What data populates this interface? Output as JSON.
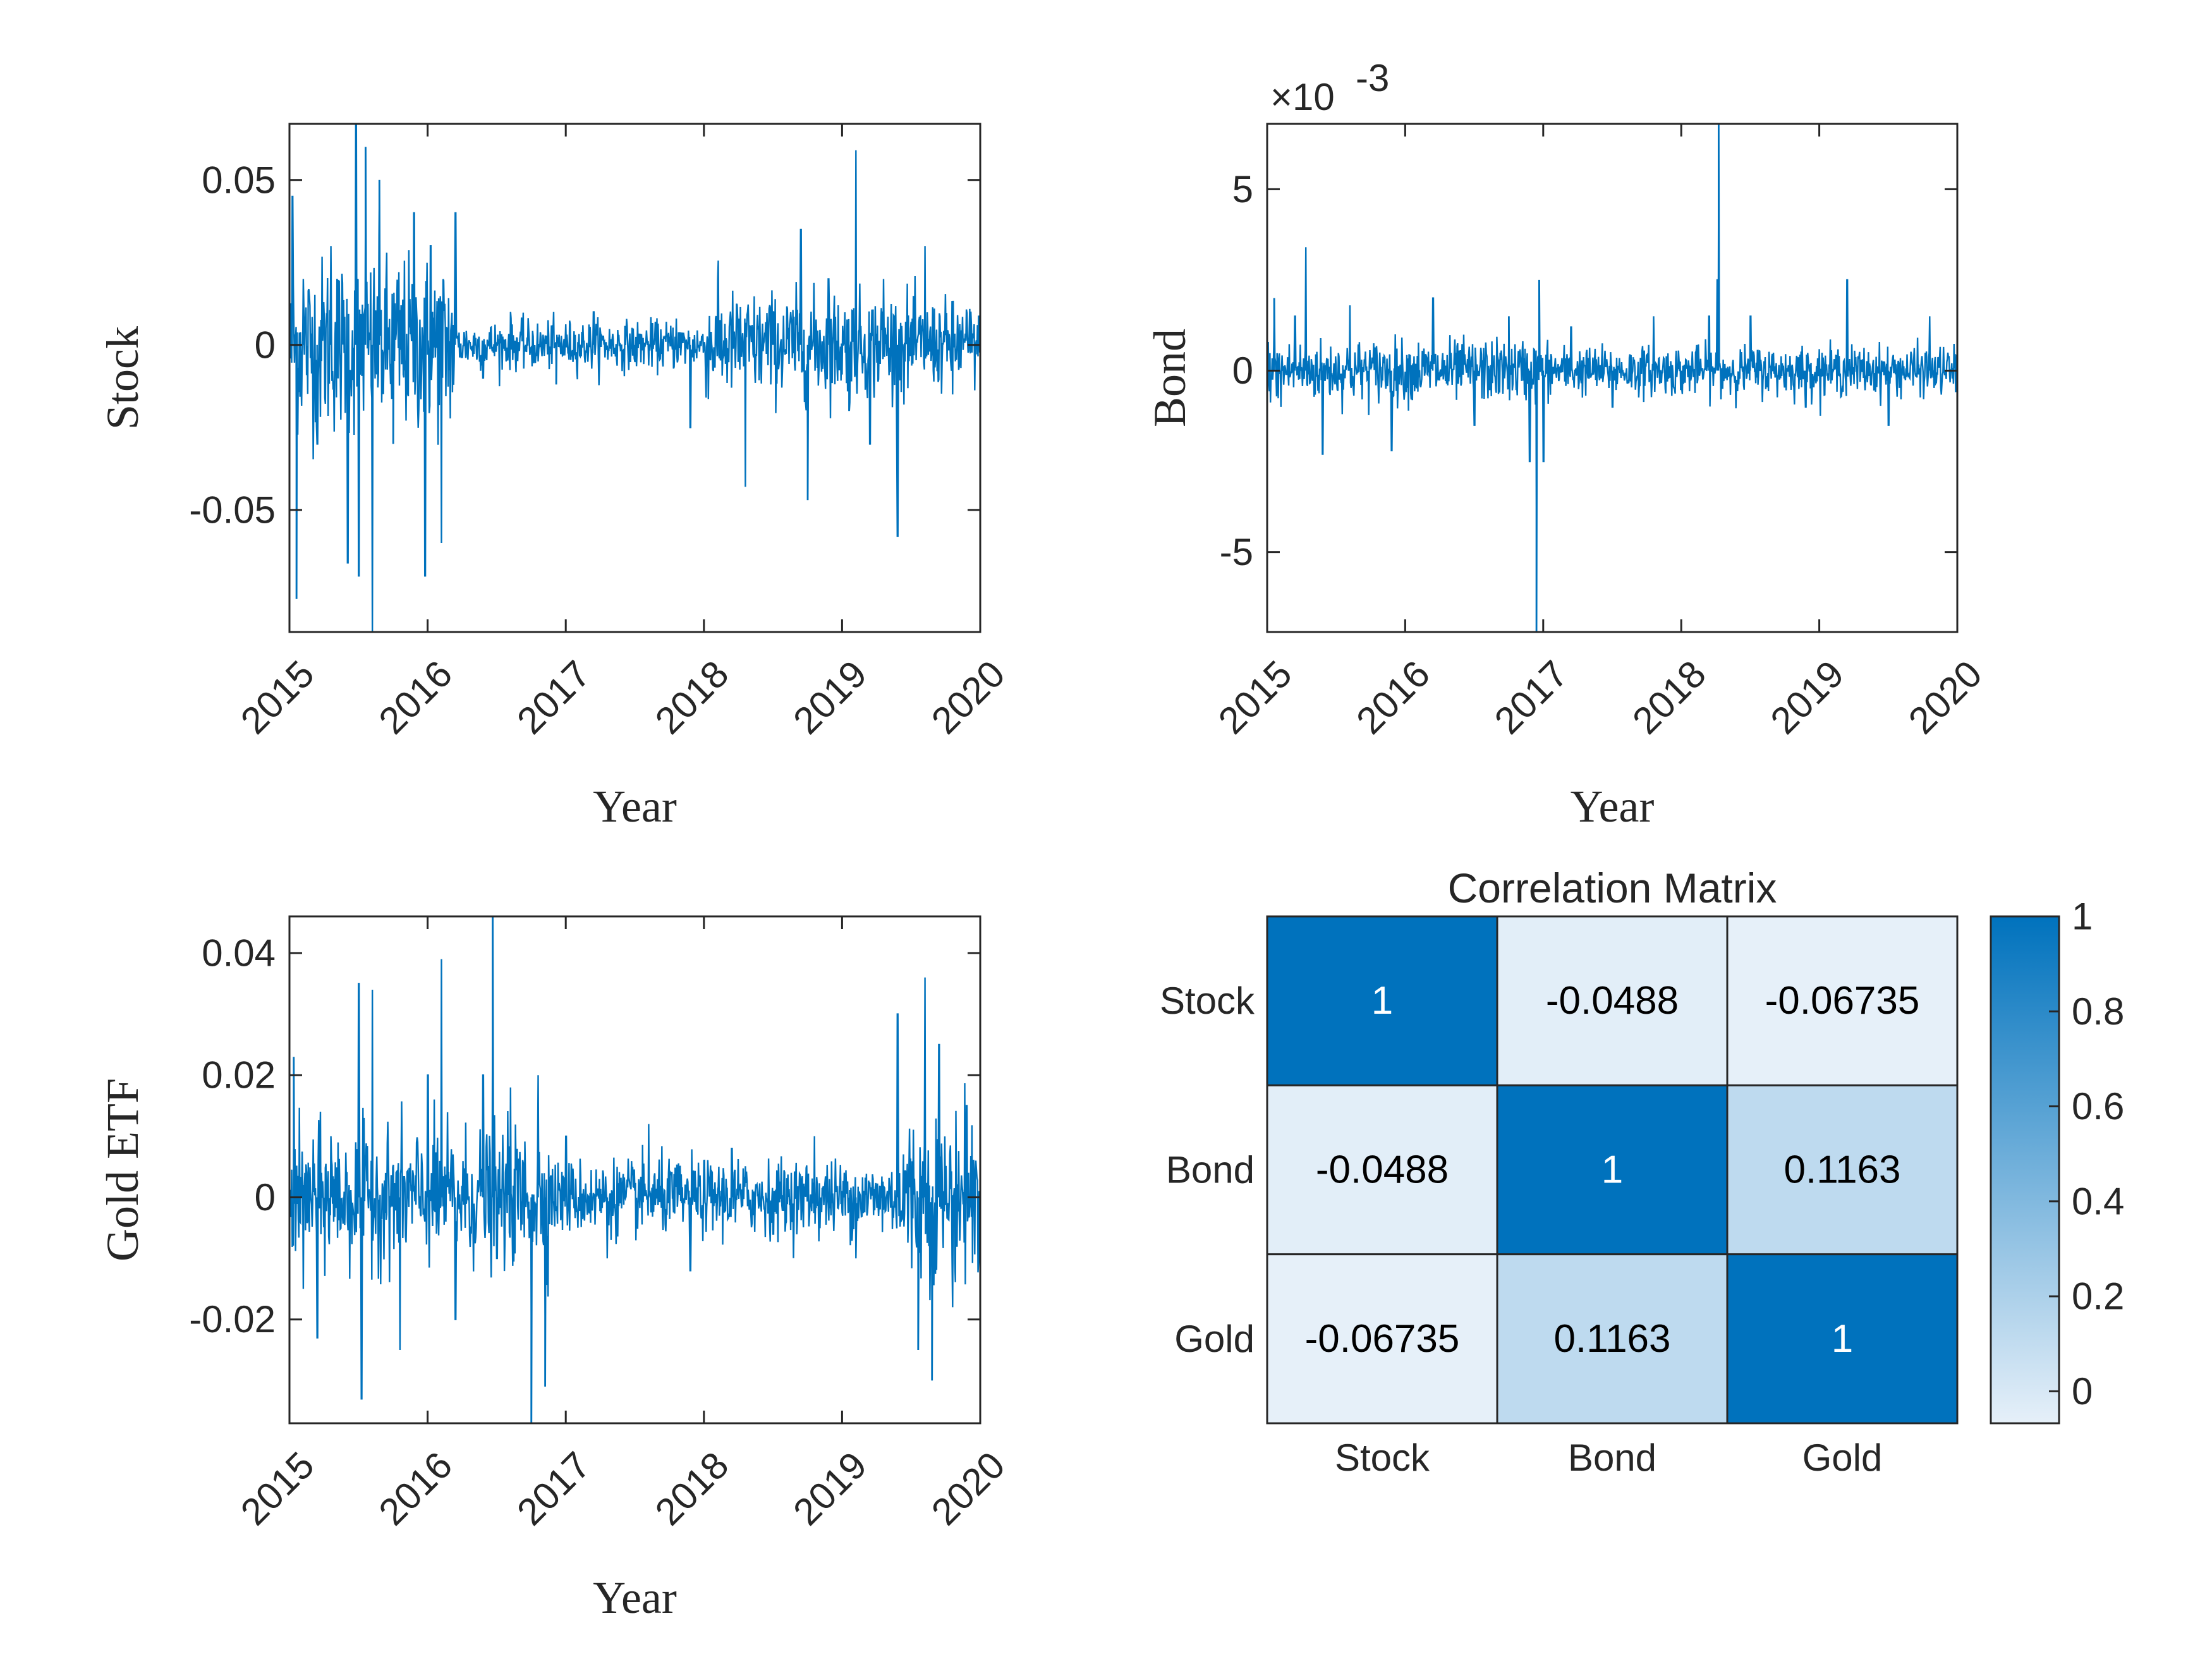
{
  "chart_data": [
    {
      "type": "line",
      "xlabel": "Year",
      "ylabel": "Stock",
      "xlim": [
        2015,
        2020
      ],
      "ylim": [
        -0.087,
        0.067
      ],
      "xticks": [
        "2015",
        "2016",
        "2017",
        "2018",
        "2019",
        "2020"
      ],
      "yticks": [
        "-0.05",
        "0",
        "0.05"
      ],
      "color": "#0072BD",
      "note_values": "daily returns; key visible extremes",
      "series": [
        {
          "x": [
            2015.0,
            2015.02,
            2015.05,
            2015.1,
            2015.2,
            2015.3,
            2015.42,
            2015.48,
            2015.5,
            2015.55,
            2015.6,
            2015.65,
            2015.75,
            2015.9,
            2015.98,
            2016.02,
            2016.1,
            2016.2,
            2016.4,
            2016.6,
            2016.8,
            2016.93,
            2017.2,
            2017.5,
            2017.8,
            2017.9,
            2018.1,
            2018.3,
            2018.5,
            2018.7,
            2018.75,
            2018.9,
            2019.05,
            2019.1,
            2019.2,
            2019.3,
            2019.4,
            2019.6,
            2019.8,
            2020.0
          ],
          "y": [
            0.0,
            0.045,
            -0.077,
            0.02,
            -0.03,
            0.03,
            -0.066,
            0.067,
            -0.07,
            0.06,
            -0.087,
            0.05,
            -0.03,
            0.04,
            -0.07,
            0.03,
            -0.06,
            0.04,
            -0.01,
            0.01,
            -0.005,
            -0.012,
            0.01,
            -0.005,
            0.008,
            -0.025,
            0.02,
            -0.043,
            0.01,
            0.035,
            -0.047,
            0.02,
            -0.02,
            0.059,
            -0.03,
            0.02,
            -0.058,
            0.03,
            -0.015,
            0.0
          ]
        }
      ]
    },
    {
      "type": "line",
      "xlabel": "Year",
      "ylabel": "Bond",
      "exponent_label": "×10",
      "exponent_power": "-3",
      "xlim": [
        2015,
        2020
      ],
      "ylim": [
        -7.2,
        6.8
      ],
      "xticks": [
        "2015",
        "2016",
        "2017",
        "2018",
        "2019",
        "2020"
      ],
      "yticks": [
        "-5",
        "0",
        "5"
      ],
      "color": "#0072BD",
      "series": [
        {
          "x": [
            2015.0,
            2015.05,
            2015.1,
            2015.2,
            2015.28,
            2015.4,
            2015.6,
            2015.9,
            2016.2,
            2016.5,
            2016.75,
            2016.9,
            2016.95,
            2016.97,
            2017.0,
            2017.2,
            2017.5,
            2017.8,
            2018.0,
            2018.2,
            2018.26,
            2018.27,
            2018.3,
            2018.5,
            2018.9,
            2019.2,
            2019.5,
            2019.8,
            2020.0
          ],
          "y": [
            0.5,
            2.0,
            -1.0,
            1.5,
            3.4,
            -2.3,
            1.8,
            -2.2,
            2.0,
            -1.5,
            1.5,
            -2.5,
            -7.2,
            2.5,
            -2.5,
            1.2,
            -1.0,
            1.5,
            -0.5,
            1.5,
            2.5,
            6.8,
            -0.5,
            1.5,
            -1.0,
            2.5,
            -1.5,
            1.5,
            0.2
          ]
        }
      ]
    },
    {
      "type": "line",
      "xlabel": "Year",
      "ylabel": "Gold ETF",
      "xlim": [
        2015,
        2020
      ],
      "ylim": [
        -0.037,
        0.046
      ],
      "xticks": [
        "2015",
        "2016",
        "2017",
        "2018",
        "2019",
        "2020"
      ],
      "yticks": [
        "-0.02",
        "0",
        "0.02",
        "0.04"
      ],
      "color": "#0072BD",
      "series": [
        {
          "x": [
            2015.0,
            2015.03,
            2015.1,
            2015.2,
            2015.3,
            2015.5,
            2015.52,
            2015.6,
            2015.8,
            2016.0,
            2016.1,
            2016.2,
            2016.4,
            2016.47,
            2016.5,
            2016.6,
            2016.75,
            2016.8,
            2016.85,
            2017.0,
            2017.3,
            2017.6,
            2017.9,
            2018.2,
            2018.5,
            2018.8,
            2019.1,
            2019.4,
            2019.55,
            2019.6,
            2019.65,
            2019.7,
            2019.8,
            2019.9,
            2020.0
          ],
          "y": [
            0.0,
            0.023,
            -0.015,
            -0.023,
            0.01,
            0.035,
            -0.033,
            0.034,
            -0.025,
            0.02,
            0.039,
            -0.02,
            0.02,
            0.046,
            -0.01,
            0.018,
            -0.037,
            0.02,
            -0.031,
            0.01,
            -0.01,
            0.012,
            -0.012,
            0.008,
            -0.006,
            0.01,
            -0.01,
            0.03,
            -0.025,
            0.036,
            -0.03,
            0.025,
            -0.018,
            0.015,
            0.0
          ]
        }
      ]
    },
    {
      "type": "heatmap",
      "title": "Correlation Matrix",
      "rows": [
        "Stock",
        "Bond",
        "Gold"
      ],
      "cols": [
        "Stock",
        "Bond",
        "Gold"
      ],
      "values": [
        [
          1,
          -0.0488,
          -0.06735
        ],
        [
          -0.0488,
          1,
          0.1163
        ],
        [
          -0.06735,
          0.1163,
          1
        ]
      ],
      "cell_labels": [
        [
          "1",
          "-0.0488",
          "-0.06735"
        ],
        [
          "-0.0488",
          "1",
          "0.1163"
        ],
        [
          "-0.06735",
          "0.1163",
          "1"
        ]
      ],
      "clim": [
        -0.06735,
        1
      ],
      "colormap": [
        "#E6F0F9",
        "#0072BD"
      ],
      "colorbar_ticks": [
        "0",
        "0.2",
        "0.4",
        "0.6",
        "0.8",
        "1"
      ],
      "colorbar_values": [
        0,
        0.2,
        0.4,
        0.6,
        0.8,
        1
      ]
    }
  ]
}
